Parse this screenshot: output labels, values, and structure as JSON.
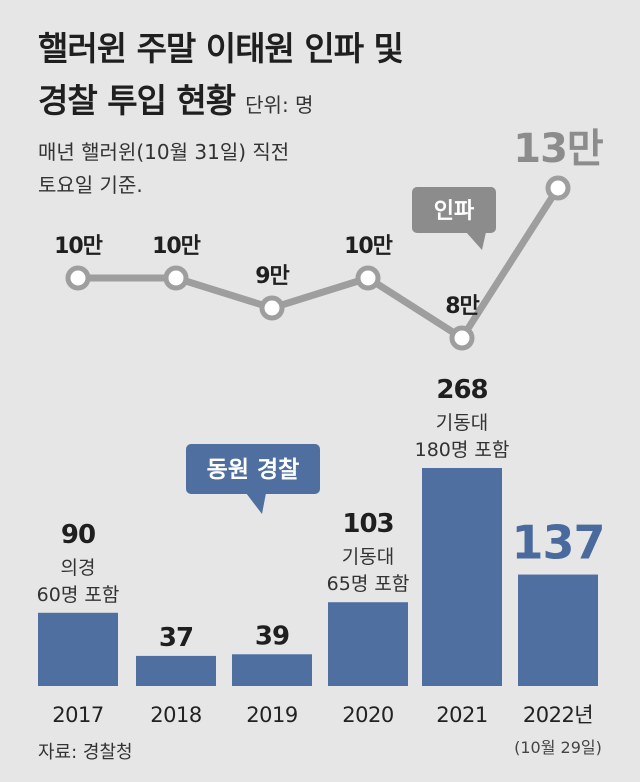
{
  "header": {
    "title_line1": "핼러윈 주말 이태원 인파 및",
    "title_line2": "경찰 투입 현황",
    "unit": "단위: 명",
    "note_line1": "매년 핼러윈(10월 31일) 직전",
    "note_line2": "토요일 기준."
  },
  "source": "자료: 경찰청",
  "colors": {
    "background": "#e6e6e6",
    "line": "#9e9e9e",
    "marker_fill": "#ffffff",
    "bar": "#4e6fa0",
    "highlight_text": "#4a6a9e",
    "crowd_2022_text": "#8c8c8c",
    "callout_crowd": "#8c8c8c",
    "callout_police": "#4e6fa0"
  },
  "chart_data": [
    {
      "type": "line",
      "series_label": "인파",
      "categories": [
        "2017",
        "2018",
        "2019",
        "2020",
        "2021",
        "2022"
      ],
      "values": [
        100000,
        100000,
        90000,
        100000,
        80000,
        130000
      ],
      "value_labels": [
        "10만",
        "10만",
        "9만",
        "10만",
        "8만",
        "13만"
      ]
    },
    {
      "type": "bar",
      "series_label": "동원 경찰",
      "categories": [
        "2017",
        "2018",
        "2019",
        "2020",
        "2021",
        "2022년"
      ],
      "category_sublabels": [
        "",
        "",
        "",
        "",
        "",
        "(10월 29일)"
      ],
      "values": [
        90,
        37,
        39,
        103,
        268,
        137
      ],
      "value_labels": [
        "90",
        "37",
        "39",
        "103",
        "268",
        "137"
      ],
      "annotations": [
        [
          "의경",
          "60명 포함"
        ],
        [],
        [],
        [
          "기동대",
          "65명 포함"
        ],
        [
          "기동대",
          "180명 포함"
        ],
        []
      ]
    }
  ]
}
